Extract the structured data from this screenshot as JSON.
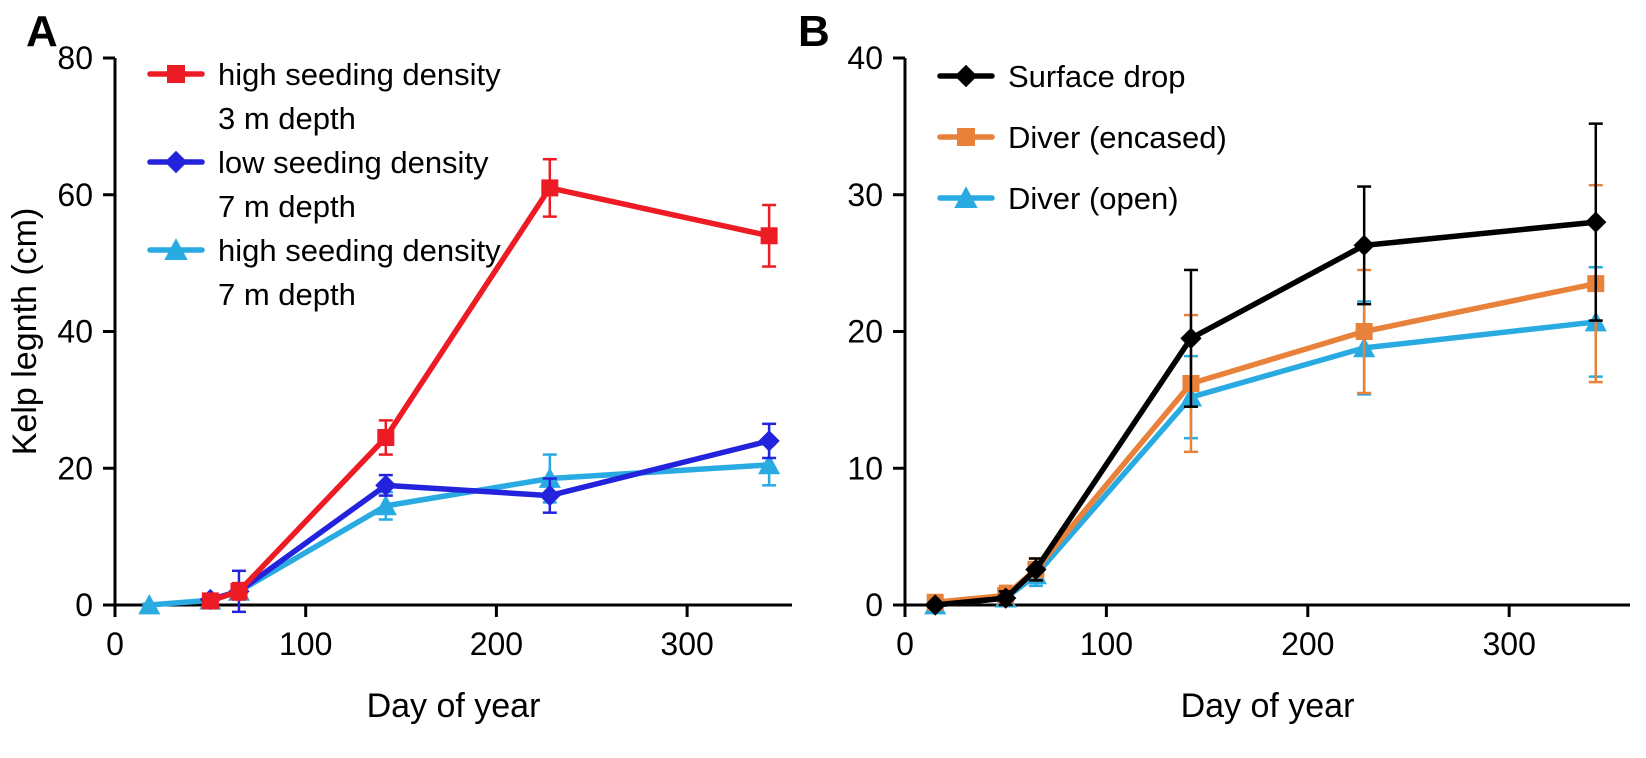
{
  "figure": {
    "background": "#ffffff"
  },
  "chart_data": [
    {
      "panel_label": "A",
      "type": "line",
      "title": "",
      "xlabel": "Day of year",
      "ylabel": "Kelp legnth  (cm)",
      "xlim": [
        0,
        355
      ],
      "ylim": [
        0,
        80
      ],
      "xticks": [
        0,
        100,
        200,
        300
      ],
      "yticks": [
        0,
        20,
        40,
        60,
        80
      ],
      "grid": false,
      "legend_position": "top-left-inside",
      "series": [
        {
          "name": "high seeding density 3 m depth",
          "legend_lines": [
            "high seeding density",
            "3 m depth"
          ],
          "color": "#ed1c24",
          "marker": "square",
          "x": [
            50,
            65,
            142,
            228,
            343
          ],
          "y": [
            0.6,
            2.0,
            24.5,
            61.0,
            54.0
          ],
          "yerr": [
            0.6,
            1.2,
            2.5,
            4.2,
            4.5
          ]
        },
        {
          "name": "low seeding density 7 m depth",
          "legend_lines": [
            "low seeding density",
            "7 m depth"
          ],
          "color": "#2323dd",
          "marker": "diamond",
          "x": [
            50,
            65,
            142,
            228,
            343
          ],
          "y": [
            0.8,
            2.0,
            17.5,
            16.0,
            24.0
          ],
          "yerr": [
            0.8,
            3.0,
            1.5,
            2.5,
            2.5
          ]
        },
        {
          "name": "high seeding density 7 m depth",
          "legend_lines": [
            "high seeding density",
            "7 m depth"
          ],
          "color": "#29abe2",
          "marker": "triangle",
          "x": [
            18,
            50,
            65,
            142,
            228,
            343
          ],
          "y": [
            0.0,
            0.7,
            2.0,
            14.5,
            18.5,
            20.5
          ],
          "yerr": [
            0.2,
            0.7,
            1.0,
            2.0,
            3.5,
            3.0
          ]
        }
      ]
    },
    {
      "panel_label": "B",
      "type": "line",
      "title": "",
      "xlabel": "Day of year",
      "ylabel": "",
      "xlim": [
        0,
        360
      ],
      "ylim": [
        0,
        40
      ],
      "xticks": [
        0,
        100,
        200,
        300
      ],
      "yticks": [
        0,
        10,
        20,
        30,
        40
      ],
      "grid": false,
      "legend_position": "top-left-inside",
      "series": [
        {
          "name": "Surface drop",
          "legend_lines": [
            "Surface drop"
          ],
          "color": "#000000",
          "marker": "diamond",
          "x": [
            15,
            50,
            65,
            142,
            228,
            343
          ],
          "y": [
            0.0,
            0.5,
            2.6,
            19.5,
            26.3,
            28.0
          ],
          "yerr": [
            0.2,
            0.5,
            0.8,
            5.0,
            4.3,
            7.2
          ]
        },
        {
          "name": "Diver (encased)",
          "legend_lines": [
            "Diver (encased)"
          ],
          "color": "#e8813a",
          "marker": "square",
          "x": [
            15,
            50,
            65,
            142,
            228,
            343
          ],
          "y": [
            0.2,
            0.7,
            2.6,
            16.2,
            20.0,
            23.5
          ],
          "yerr": [
            0.4,
            0.7,
            0.8,
            5.0,
            4.5,
            7.2
          ]
        },
        {
          "name": "Diver (open)",
          "legend_lines": [
            "Diver (open)"
          ],
          "color": "#29abe2",
          "marker": "triangle",
          "x": [
            15,
            50,
            65,
            142,
            228,
            343
          ],
          "y": [
            0.0,
            0.5,
            2.2,
            15.2,
            18.8,
            20.7
          ],
          "yerr": [
            0.2,
            0.5,
            0.8,
            3.0,
            3.4,
            4.0
          ]
        }
      ]
    }
  ]
}
